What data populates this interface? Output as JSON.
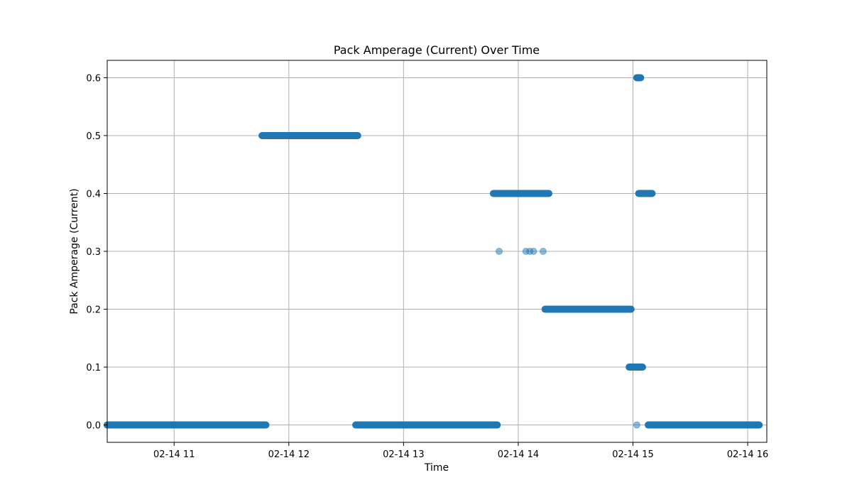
{
  "chart_data": {
    "type": "scatter",
    "title": "Pack Amperage (Current) Over Time",
    "xlabel": "Time",
    "ylabel": "Pack Amperage (Current)",
    "x_range": [
      "02-14 10:25",
      "02-14 16:10"
    ],
    "ylim": [
      -0.03,
      0.63
    ],
    "x_ticks": [
      {
        "time": "02-14 11:00",
        "label": "02-14 11"
      },
      {
        "time": "02-14 12:00",
        "label": "02-14 12"
      },
      {
        "time": "02-14 13:00",
        "label": "02-14 13"
      },
      {
        "time": "02-14 14:00",
        "label": "02-14 14"
      },
      {
        "time": "02-14 15:00",
        "label": "02-14 15"
      },
      {
        "time": "02-14 16:00",
        "label": "02-14 16"
      }
    ],
    "y_ticks": [
      {
        "value": 0.0,
        "label": "0.0"
      },
      {
        "value": 0.1,
        "label": "0.1"
      },
      {
        "value": 0.2,
        "label": "0.2"
      },
      {
        "value": 0.3,
        "label": "0.3"
      },
      {
        "value": 0.4,
        "label": "0.4"
      },
      {
        "value": 0.5,
        "label": "0.5"
      },
      {
        "value": 0.6,
        "label": "0.6"
      }
    ],
    "grid": true,
    "marker_color": "#1f77b4",
    "marker_alpha": 0.5,
    "segments": [
      {
        "start": "02-14 10:25",
        "end": "02-14 11:48",
        "value": 0.0
      },
      {
        "start": "02-14 11:46",
        "end": "02-14 12:36",
        "value": 0.5
      },
      {
        "start": "02-14 12:35",
        "end": "02-14 13:49",
        "value": 0.0
      },
      {
        "start": "02-14 13:47",
        "end": "02-14 14:16",
        "value": 0.4
      },
      {
        "start": "02-14 14:14",
        "end": "02-14 14:59",
        "value": 0.2
      },
      {
        "start": "02-14 14:58",
        "end": "02-14 15:05",
        "value": 0.1
      },
      {
        "start": "02-14 15:02",
        "end": "02-14 15:04",
        "value": 0.6
      },
      {
        "start": "02-14 15:03",
        "end": "02-14 15:10",
        "value": 0.4
      },
      {
        "start": "02-14 15:08",
        "end": "02-14 16:06",
        "value": 0.0
      }
    ],
    "points": [
      {
        "time": "02-14 13:50",
        "value": 0.3
      },
      {
        "time": "02-14 14:04",
        "value": 0.3
      },
      {
        "time": "02-14 14:06",
        "value": 0.3
      },
      {
        "time": "02-14 14:08",
        "value": 0.3
      },
      {
        "time": "02-14 14:13",
        "value": 0.3
      },
      {
        "time": "02-14 15:02",
        "value": 0.0
      }
    ]
  }
}
